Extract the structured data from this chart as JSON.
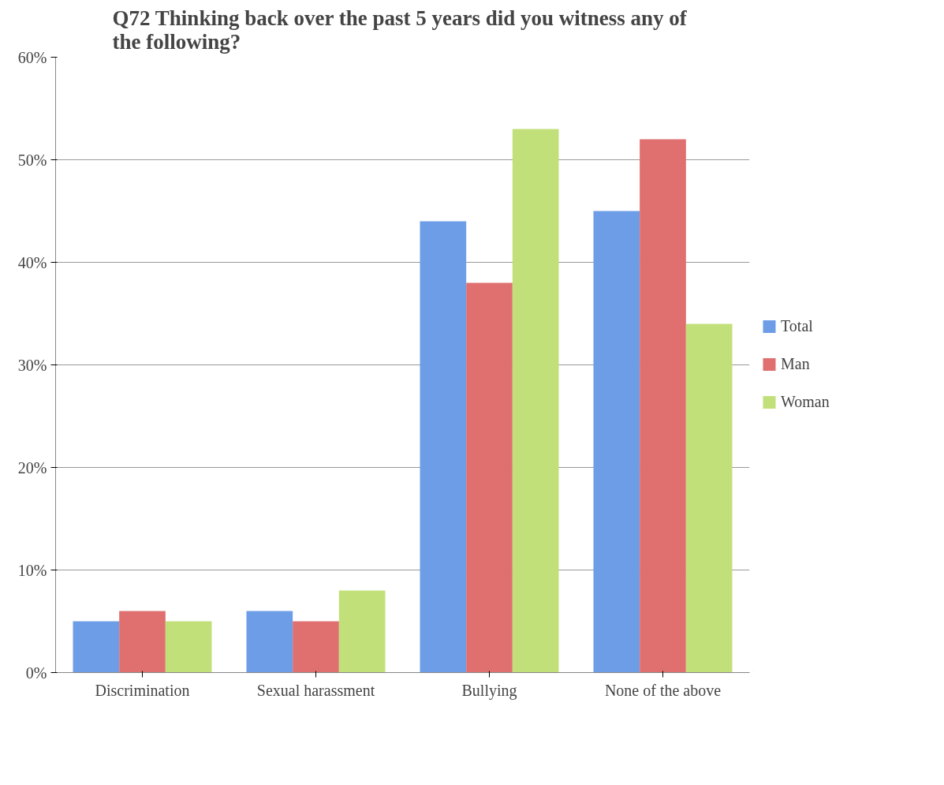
{
  "chart_data": {
    "type": "bar",
    "title": "Q72  Thinking back over the past 5 years did you witness any of the following?",
    "categories": [
      "Discrimination",
      "Sexual harassment",
      "Bullying",
      "None of the above"
    ],
    "series": [
      {
        "name": "Total",
        "color": "#6d9de6",
        "values": [
          5,
          6,
          44,
          45
        ]
      },
      {
        "name": "Man",
        "color": "#e07070",
        "values": [
          6,
          5,
          38,
          52
        ]
      },
      {
        "name": "Woman",
        "color": "#c2e07a",
        "values": [
          5,
          8,
          53,
          34
        ]
      }
    ],
    "ylim": [
      0,
      60
    ],
    "yticks": [
      {
        "value": 0,
        "label": "0%"
      },
      {
        "value": 10,
        "label": "10%"
      },
      {
        "value": 20,
        "label": "20%"
      },
      {
        "value": 30,
        "label": "30%"
      },
      {
        "value": 40,
        "label": "40%"
      },
      {
        "value": 50,
        "label": "50%"
      },
      {
        "value": 60,
        "label": "60%"
      }
    ],
    "grid": "y",
    "legend": "right"
  }
}
